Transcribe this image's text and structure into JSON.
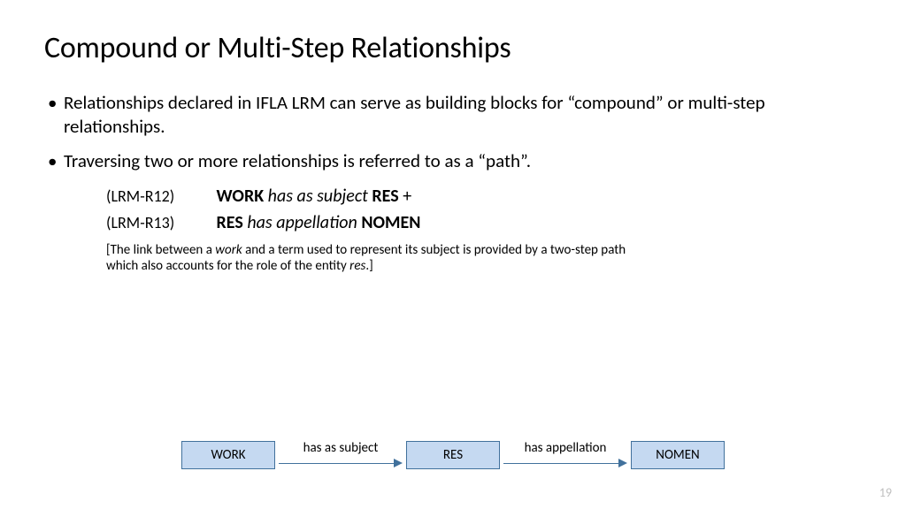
{
  "title": "Compound or Multi-Step Relationships",
  "bullets": [
    "Relationships declared in IFLA LRM can serve as building blocks for “compound” or multi-step relationships.",
    "Traversing two or more relationships is referred to as a “path”."
  ],
  "relations": [
    {
      "code": "(LRM-R12)",
      "subject": "WORK",
      "predicate": "has as subject",
      "object": "RES",
      "trailing": " +"
    },
    {
      "code": "(LRM-R13)",
      "subject": "RES",
      "predicate": "has appellation",
      "object": "NOMEN",
      "trailing": ""
    }
  ],
  "note": {
    "open": "[The link between a ",
    "ital1": "work",
    "mid": " and a term used to represent its subject is provided by a two-step path which also accounts for the role of the entity ",
    "ital2": "res",
    "close": ".]"
  },
  "diagram": {
    "nodes": [
      "WORK",
      "RES",
      "NOMEN"
    ],
    "edges": [
      "has as subject",
      "has appellation"
    ],
    "node_bg": "#c5d9f1",
    "node_border": "#41719c",
    "arrow_color": "#41719c"
  },
  "page_number": "19",
  "colors": {
    "text": "#000000",
    "pagenum": "#bfbfbf",
    "bg": "#ffffff"
  }
}
